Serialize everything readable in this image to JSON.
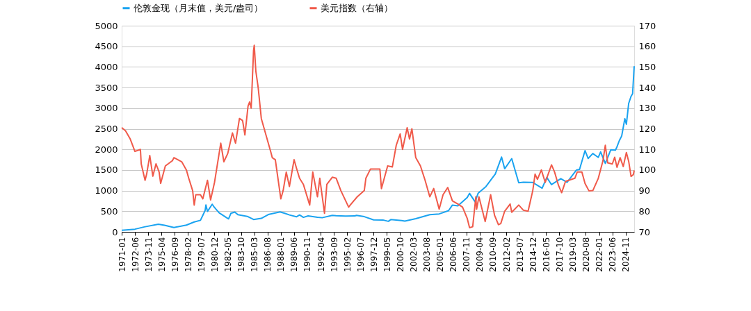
{
  "chart_data": {
    "type": "line",
    "legend": "top",
    "grid": "y",
    "marker": "none",
    "line_style": "solid",
    "xlim": [
      "1971-01",
      "2025-10"
    ],
    "xticks": [
      "1971-01",
      "1972-06",
      "1973-11",
      "1975-04",
      "1976-09",
      "1978-02",
      "1979-07",
      "1980-12",
      "1982-05",
      "1983-10",
      "1985-03",
      "1986-08",
      "1988-01",
      "1989-06",
      "1990-11",
      "1992-04",
      "1993-09",
      "1995-02",
      "1996-07",
      "1997-12",
      "1999-05",
      "2000-10",
      "2002-03",
      "2003-08",
      "2005-01",
      "2006-06",
      "2007-11",
      "2009-04",
      "2010-09",
      "2012-02",
      "2013-07",
      "2014-12",
      "2016-05",
      "2017-10",
      "2019-03",
      "2020-08",
      "2022-01",
      "2023-06",
      "2024-11"
    ],
    "ylim": [
      0,
      5000
    ],
    "yticks": [
      0,
      500,
      1000,
      1500,
      2000,
      2500,
      3000,
      3500,
      4000,
      4500,
      5000
    ],
    "y2lim": [
      70,
      170
    ],
    "y2ticks": [
      70,
      80,
      90,
      100,
      110,
      120,
      130,
      140,
      150,
      160,
      170
    ],
    "series": [
      {
        "name": "伦敦金现（月末值，美元/盎司）",
        "color": "#1aa3f0",
        "x": [
          "1971-01",
          "1972-06",
          "1973-06",
          "1974-12",
          "1975-08",
          "1976-08",
          "1977-12",
          "1978-10",
          "1979-06",
          "1979-09",
          "1979-12",
          "1980-01",
          "1980-03",
          "1980-09",
          "1980-12",
          "1981-06",
          "1982-06",
          "1982-09",
          "1983-02",
          "1983-06",
          "1984-06",
          "1985-02",
          "1985-12",
          "1986-09",
          "1987-12",
          "1988-06",
          "1988-12",
          "1989-09",
          "1990-01",
          "1990-06",
          "1990-12",
          "1991-12",
          "1992-06",
          "1993-07",
          "1993-12",
          "1994-12",
          "1995-12",
          "1996-02",
          "1996-12",
          "1997-12",
          "1998-12",
          "1999-07",
          "1999-10",
          "2000-12",
          "2001-04",
          "2002-06",
          "2003-12",
          "2004-12",
          "2005-12",
          "2006-05",
          "2006-12",
          "2007-12",
          "2008-03",
          "2008-10",
          "2009-02",
          "2009-12",
          "2010-12",
          "2011-08",
          "2011-12",
          "2012-09",
          "2013-06",
          "2013-12",
          "2014-12",
          "2015-12",
          "2016-06",
          "2016-12",
          "2017-12",
          "2018-08",
          "2019-08",
          "2019-12",
          "2020-07",
          "2020-11",
          "2021-05",
          "2021-12",
          "2022-03",
          "2022-09",
          "2023-04",
          "2023-10",
          "2023-12",
          "2024-03",
          "2024-06",
          "2024-10",
          "2024-12",
          "2025-03",
          "2025-06",
          "2025-08",
          "2025-10"
        ],
        "values": [
          38,
          65,
          120,
          186,
          160,
          105,
          165,
          240,
          280,
          400,
          520,
          653,
          495,
          670,
          590,
          460,
          315,
          450,
          480,
          415,
          375,
          300,
          327,
          420,
          485,
          450,
          410,
          365,
          410,
          352,
          386,
          353,
          343,
          400,
          390,
          383,
          387,
          400,
          369,
          290,
          288,
          255,
          300,
          273,
          260,
          320,
          416,
          435,
          513,
          650,
          632,
          834,
          933,
          730,
          940,
          1100,
          1405,
          1813,
          1531,
          1776,
          1192,
          1204,
          1199,
          1060,
          1320,
          1146,
          1291,
          1200,
          1500,
          1515,
          1971,
          1780,
          1900,
          1806,
          1940,
          1660,
          1990,
          1983,
          2063,
          2214,
          2326,
          2744,
          2610,
          3115,
          3287,
          3350,
          4020
        ]
      },
      {
        "name": "美元指数（右轴）",
        "color": "#f05a4a",
        "axis": "y2",
        "x": [
          "1971-01",
          "1971-06",
          "1971-12",
          "1972-06",
          "1973-01",
          "1973-02",
          "1973-07",
          "1973-09",
          "1974-01",
          "1974-05",
          "1974-09",
          "1975-01",
          "1975-03",
          "1975-09",
          "1976-06",
          "1976-08",
          "1977-06",
          "1977-12",
          "1978-03",
          "1978-08",
          "1978-10",
          "1978-12",
          "1979-06",
          "1979-09",
          "1980-03",
          "1980-07",
          "1980-12",
          "1981-03",
          "1981-08",
          "1981-12",
          "1982-05",
          "1982-11",
          "1983-03",
          "1983-08",
          "1983-12",
          "1984-03",
          "1984-07",
          "1984-09",
          "1984-11",
          "1985-02",
          "1985-03",
          "1985-05",
          "1985-08",
          "1985-12",
          "1986-06",
          "1986-12",
          "1987-02",
          "1987-06",
          "1988-01",
          "1988-04",
          "1988-08",
          "1988-12",
          "1989-06",
          "1989-09",
          "1990-01",
          "1990-06",
          "1991-02",
          "1991-06",
          "1991-12",
          "1992-03",
          "1992-09",
          "1992-12",
          "1993-02",
          "1993-07",
          "1993-12",
          "1994-06",
          "1995-04",
          "1995-06",
          "1996-03",
          "1996-12",
          "1997-02",
          "1997-08",
          "1998-08",
          "1998-10",
          "1999-06",
          "1999-12",
          "2000-05",
          "2000-10",
          "2001-01",
          "2001-07",
          "2001-10",
          "2002-01",
          "2002-06",
          "2002-12",
          "2003-06",
          "2003-12",
          "2004-05",
          "2004-12",
          "2005-05",
          "2005-11",
          "2006-05",
          "2006-12",
          "2007-06",
          "2007-12",
          "2008-03",
          "2008-07",
          "2008-11",
          "2008-12",
          "2009-03",
          "2009-11",
          "2010-06",
          "2010-11",
          "2011-04",
          "2011-07",
          "2011-12",
          "2012-07",
          "2012-09",
          "2013-06",
          "2013-12",
          "2014-06",
          "2014-12",
          "2015-03",
          "2015-06",
          "2015-11",
          "2016-04",
          "2016-12",
          "2017-04",
          "2017-09",
          "2018-01",
          "2018-06",
          "2019-06",
          "2019-09",
          "2020-03",
          "2020-07",
          "2020-12",
          "2021-05",
          "2021-12",
          "2022-06",
          "2022-09",
          "2022-12",
          "2023-06",
          "2023-09",
          "2023-12",
          "2024-04",
          "2024-08",
          "2024-12",
          "2025-03",
          "2025-06",
          "2025-09",
          "2025-10"
        ],
        "values": [
          120.6,
          119,
          115,
          109,
          110,
          103,
          95,
          98,
          107,
          97,
          103,
          99,
          93.5,
          102,
          104.5,
          106,
          104,
          100,
          96,
          90,
          83,
          88,
          88,
          86,
          95,
          85.5,
          94,
          101,
          113,
          104,
          108,
          118,
          113,
          125,
          124,
          117,
          131,
          133,
          130,
          158,
          160.5,
          148,
          140,
          125,
          117,
          109,
          106,
          105,
          86,
          90,
          99,
          92,
          105,
          101,
          96,
          93,
          83,
          99,
          87,
          96,
          79,
          93,
          94,
          96.5,
          96,
          90,
          82,
          83,
          87,
          90,
          96,
          100.5,
          100.5,
          91,
          102,
          101.5,
          112,
          117.5,
          110,
          120.5,
          115,
          120,
          106,
          102,
          95,
          87,
          91,
          81,
          88,
          91.5,
          85,
          83.5,
          82,
          76.5,
          72,
          72.5,
          87,
          81,
          87,
          75,
          88,
          78,
          73.5,
          74,
          80,
          83.5,
          79.5,
          83,
          80.5,
          80,
          90,
          98,
          95.5,
          100,
          94,
          102.5,
          99,
          92.5,
          89,
          94.5,
          96,
          99,
          99,
          93.5,
          89.9,
          90,
          96,
          104.5,
          112,
          103.5,
          102.9,
          106.2,
          101.3,
          106,
          101.7,
          108.5,
          104.2,
          96.9,
          97.8,
          99.8
        ]
      }
    ]
  }
}
